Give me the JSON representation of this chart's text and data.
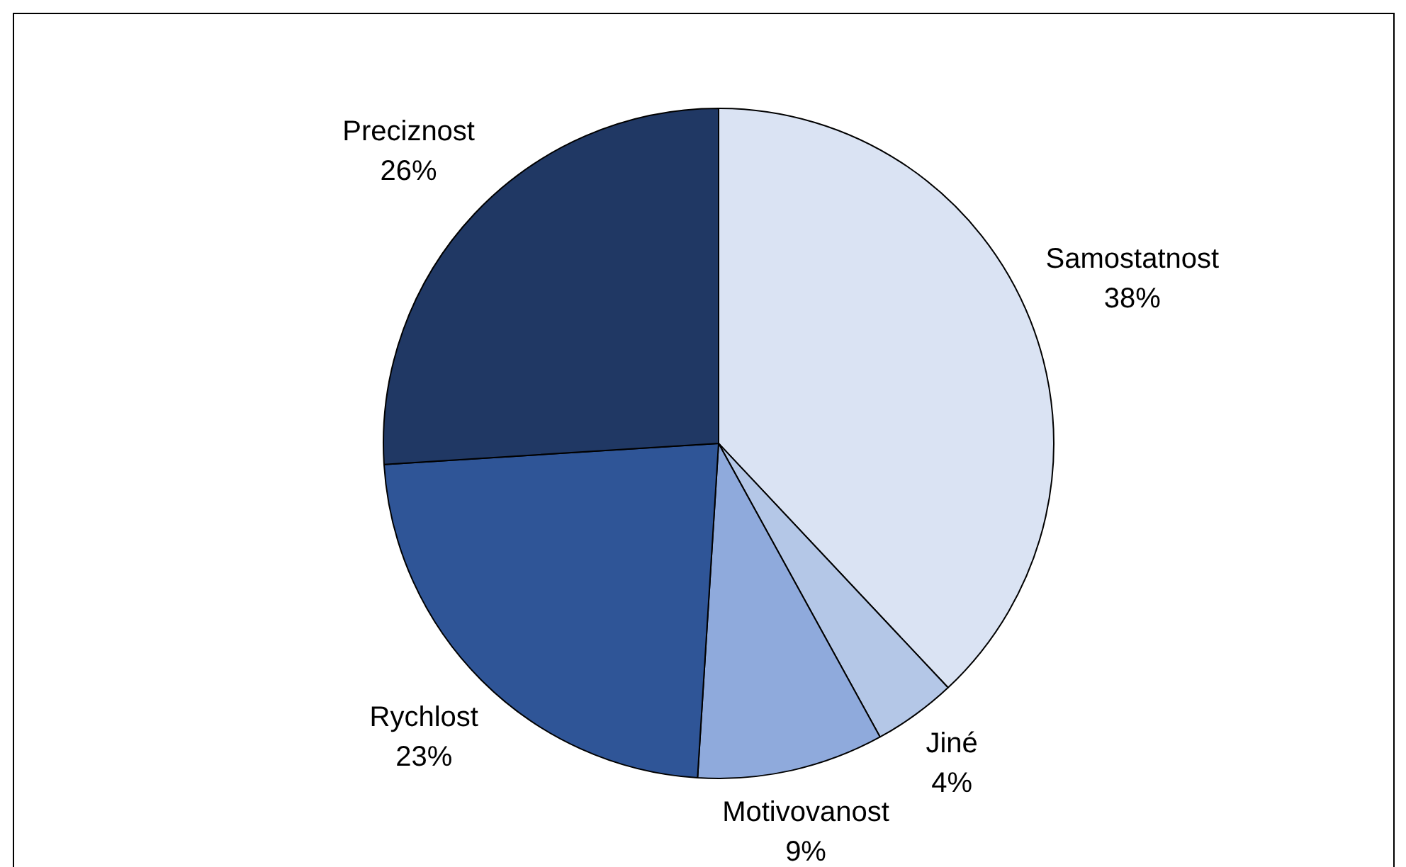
{
  "chart_data": {
    "type": "pie",
    "categories": [
      "Samostatnost",
      "Jiné",
      "Motivovanost",
      "Rychlost",
      "Preciznost"
    ],
    "values": [
      38,
      4,
      9,
      23,
      26
    ],
    "colors": [
      "#dae3f3",
      "#b4c7e7",
      "#8faadc",
      "#2f5597",
      "#203864"
    ],
    "value_labels": [
      "38%",
      "4%",
      "9%",
      "23%",
      "26%"
    ]
  }
}
